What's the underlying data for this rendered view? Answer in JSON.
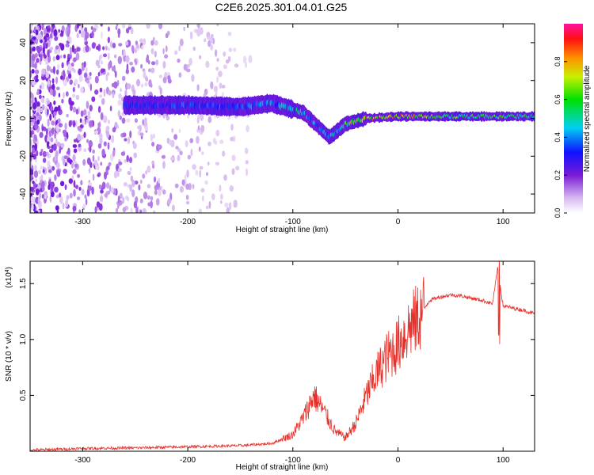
{
  "title": "C2E6.2025.301.04.01.G25",
  "chart_data": [
    {
      "type": "heatmap",
      "xlabel": "Height of straight line (km)",
      "ylabel": "Frequency (Hz)",
      "xlim": [
        -350,
        130
      ],
      "ylim": [
        -50,
        50
      ],
      "x_ticks": [
        -300,
        -200,
        -100,
        0,
        100
      ],
      "x_tick_labels": [
        "-300",
        "-200",
        "-100",
        "0",
        "100"
      ],
      "y_ticks": [
        -40,
        -20,
        0,
        20,
        40
      ],
      "y_tick_labels": [
        "-40",
        "-20",
        "0",
        "20",
        "40"
      ],
      "colorbar": {
        "label": "Normalized spectral amplitude",
        "range": [
          0,
          1
        ],
        "ticks": [
          0.0,
          0.2,
          0.4,
          0.6,
          0.8
        ],
        "tick_labels": [
          "0.0",
          "0.2",
          "0.4",
          "0.6",
          "0.8"
        ]
      },
      "ridge": {
        "description_points": [
          {
            "x": -260,
            "freq": 7,
            "amp": 0.3
          },
          {
            "x": -200,
            "freq": 7,
            "amp": 0.35
          },
          {
            "x": -150,
            "freq": 6,
            "amp": 0.35
          },
          {
            "x": -120,
            "freq": 8,
            "amp": 0.4
          },
          {
            "x": -90,
            "freq": 3,
            "amp": 0.45
          },
          {
            "x": -65,
            "freq": -10,
            "amp": 0.4
          },
          {
            "x": -50,
            "freq": -3,
            "amp": 0.55
          },
          {
            "x": -30,
            "freq": 0,
            "amp": 0.8
          },
          {
            "x": 0,
            "freq": 1,
            "amp": 0.75
          },
          {
            "x": 50,
            "freq": 1,
            "amp": 0.6
          },
          {
            "x": 100,
            "freq": 1,
            "amp": 0.55
          },
          {
            "x": 130,
            "freq": 1,
            "amp": 0.5
          }
        ]
      },
      "noise_region": {
        "x_from": -350,
        "x_to": -140,
        "freq_range": [
          -50,
          50
        ],
        "amp": 0.1
      }
    },
    {
      "type": "line",
      "xlabel": "Height of straight line (km)",
      "ylabel": "SNR (10 * v/v)",
      "y_multiplier_label": "(x10",
      "y_multiplier_exp": "4",
      "y_multiplier_close": ")",
      "xlim": [
        -350,
        130
      ],
      "ylim": [
        0,
        17000
      ],
      "x_ticks": [
        -300,
        -200,
        -100,
        0,
        100
      ],
      "x_tick_labels": [
        "-300",
        "-200",
        "-100",
        "0",
        "100"
      ],
      "y_ticks": [
        5000,
        10000,
        15000
      ],
      "y_tick_labels": [
        "0.5",
        "1.0",
        "1.5"
      ],
      "color": "#e8302a",
      "series": [
        {
          "name": "SNR",
          "x": [
            -350,
            -300,
            -250,
            -200,
            -150,
            -120,
            -100,
            -90,
            -80,
            -70,
            -60,
            -50,
            -40,
            -30,
            -20,
            -10,
            0,
            10,
            20,
            30,
            40,
            50,
            60,
            70,
            80,
            90,
            95,
            100,
            110,
            120,
            130
          ],
          "y": [
            100,
            250,
            300,
            400,
            500,
            700,
            1500,
            3000,
            5000,
            3500,
            1800,
            1200,
            2500,
            5000,
            7000,
            8500,
            9500,
            11000,
            12000,
            13500,
            13800,
            14000,
            13900,
            13700,
            13500,
            13200,
            16500,
            13000,
            12800,
            12600,
            12300
          ]
        }
      ]
    }
  ]
}
